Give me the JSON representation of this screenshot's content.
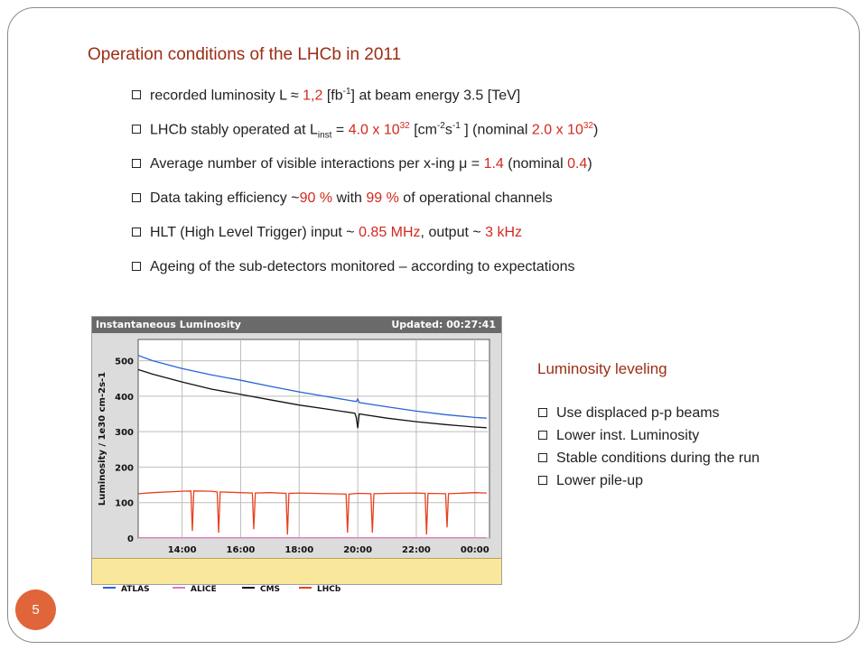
{
  "slide": {
    "title": "Operation conditions of the LHCb in 2011",
    "page_number": "5",
    "bullets": {
      "b1": {
        "pre": "recorded luminosity L ≈ ",
        "val": "1,2",
        "mid": " [fb",
        "sup": "-1",
        "post": "] at beam energy 3.5 [TeV]"
      },
      "b2": {
        "pre": "LHCb stably operated at L",
        "sub": "inst",
        "eq": " = ",
        "val": "4.0 x 10",
        "sup1": "32",
        "mid": " [cm",
        "sup2": "-2",
        "s": "s",
        "sup3": "-1",
        "mid2": " ] (nominal ",
        "val2": "2.0 x 10",
        "sup4": "32",
        "post": ")"
      },
      "b3": {
        "pre": "Average number of visible interactions per x-ing μ = ",
        "val": "1.4",
        "mid": " (nominal ",
        "val2": "0.4",
        "post": ")"
      },
      "b4": {
        "pre": "Data taking efficiency ~",
        "val": "90 %",
        "mid": " with ",
        "val2": "99 %",
        "post": " of operational channels"
      },
      "b5": {
        "pre": "HLT (High Level Trigger) input ~ ",
        "val": "0.85 MHz",
        "mid": ", output ~ ",
        "val2": "3 kHz"
      },
      "b6": {
        "pre": "Ageing of the sub-detectors monitored – according to expectations"
      }
    },
    "side": {
      "title": "Luminosity leveling",
      "items": [
        "Use displaced p-p beams",
        "Lower inst. Luminosity",
        "Stable conditions during the run",
        "Lower pile-up"
      ]
    }
  },
  "colors": {
    "title": "#9b2e14",
    "highlight": "#d2291e",
    "page_badge": "#e0653a",
    "legend_bg": "#f9e79b"
  },
  "chart_data": {
    "type": "line",
    "header_title": "Instantaneous Luminosity",
    "updated": "Updated: 00:27:41",
    "ylabel": "Luminosity / 1e30 cm-2s-1",
    "ylim": [
      0,
      560
    ],
    "yticks": [
      0,
      100,
      200,
      300,
      400,
      500
    ],
    "xlim": [
      12.5,
      24.5
    ],
    "xticks": [
      {
        "x": 14,
        "label": "14:00"
      },
      {
        "x": 16,
        "label": "16:00"
      },
      {
        "x": 18,
        "label": "18:00"
      },
      {
        "x": 20,
        "label": "20:00"
      },
      {
        "x": 22,
        "label": "22:00"
      },
      {
        "x": 24,
        "label": "00:00"
      }
    ],
    "series": [
      {
        "name": "ATLAS",
        "color": "#2a63d6",
        "x": [
          12.5,
          13,
          14,
          15,
          16,
          17,
          18,
          19,
          19.95,
          20.0,
          20.05,
          21,
          22,
          23,
          24,
          24.4
        ],
        "y": [
          515,
          500,
          478,
          460,
          445,
          428,
          412,
          398,
          385,
          392,
          382,
          370,
          358,
          348,
          340,
          338
        ]
      },
      {
        "name": "ALICE",
        "color": "#e07ac0",
        "x": [
          12.5,
          24.4
        ],
        "y": [
          1,
          1
        ]
      },
      {
        "name": "CMS",
        "color": "#111111",
        "x": [
          12.5,
          13,
          14,
          15,
          16,
          17,
          18,
          19,
          19.9,
          19.95,
          20.0,
          20.05,
          21,
          22,
          23,
          24,
          24.4
        ],
        "y": [
          475,
          462,
          440,
          420,
          405,
          390,
          375,
          363,
          352,
          340,
          310,
          350,
          338,
          328,
          320,
          313,
          311
        ]
      },
      {
        "name": "LHCb",
        "color": "#e8401c",
        "x": [
          12.5,
          13,
          14,
          14.3,
          14.35,
          14.4,
          15,
          15.2,
          15.25,
          15.3,
          16,
          16.4,
          16.45,
          16.5,
          17,
          17.55,
          17.6,
          17.65,
          18,
          19,
          19.6,
          19.65,
          19.7,
          20,
          20.45,
          20.5,
          20.55,
          21,
          22,
          22.3,
          22.35,
          22.4,
          23,
          23.05,
          23.1,
          24,
          24.4
        ],
        "y": [
          125,
          128,
          132,
          133,
          20,
          133,
          132,
          130,
          15,
          130,
          128,
          127,
          25,
          127,
          128,
          126,
          10,
          126,
          127,
          125,
          124,
          15,
          124,
          126,
          125,
          15,
          125,
          126,
          127,
          126,
          10,
          126,
          125,
          30,
          125,
          128,
          127
        ]
      }
    ]
  }
}
